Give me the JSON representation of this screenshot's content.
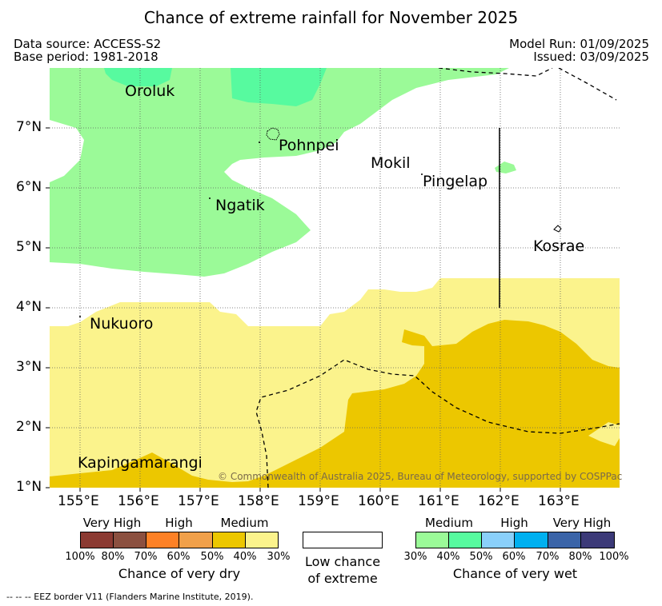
{
  "title": "Chance of extreme rainfall for November 2025",
  "meta": {
    "data_source": "Data source: ACCESS-S2",
    "base_period": "Base period: 1981-2018",
    "model_run": "Model Run: 01/09/2025",
    "issued": "Issued: 03/09/2025"
  },
  "axes": {
    "x_ticks": [
      "155°E",
      "156°E",
      "157°E",
      "158°E",
      "159°E",
      "160°E",
      "161°E",
      "162°E",
      "163°E"
    ],
    "y_ticks": [
      "7°N",
      "6°N",
      "5°N",
      "4°N",
      "3°N",
      "2°N",
      "1°N"
    ]
  },
  "places": {
    "oroluk": "Oroluk",
    "pohnpei": "Pohnpei",
    "mokil": "Mokil",
    "pingelap": "Pingelap",
    "ngatik": "Ngatik",
    "kosrae": "Kosrae",
    "nukuoro": "Nukuoro",
    "kapingamarangi": "Kapingamarangi"
  },
  "copyright": "© Commonwealth of Australia 2025, Bureau of Meteorology, supported by COSPPac",
  "colors": {
    "wet_medium": "#9bfa98",
    "wet_medium_dark": "#57fa9f",
    "dry_medium": "#fbf38c",
    "dry_medium_dark": "#ecc700"
  },
  "legend": {
    "dry": {
      "headers": [
        "Very High",
        "High",
        "Medium"
      ],
      "percents": [
        "100%",
        "80%",
        "70%",
        "60%",
        "50%",
        "40%",
        "30%"
      ],
      "caption": "Chance of very dry",
      "colors": [
        "#8b3a32",
        "#8b5040",
        "#fd8126",
        "#f0a04a",
        "#ecc700",
        "#fbf38c"
      ]
    },
    "low": {
      "caption_line1": "Low chance",
      "caption_line2": "of extreme"
    },
    "wet": {
      "headers": [
        "Medium",
        "High",
        "Very High"
      ],
      "percents": [
        "30%",
        "40%",
        "50%",
        "60%",
        "70%",
        "80%",
        "100%"
      ],
      "caption": "Chance of very wet",
      "colors": [
        "#9bfa98",
        "#57fa9f",
        "#8ad0fa",
        "#00b0f0",
        "#3a64a8",
        "#3c3a78"
      ]
    }
  },
  "footnote": "--  --  -- EEZ border V11 (Flanders Marine Institute, 2019)."
}
